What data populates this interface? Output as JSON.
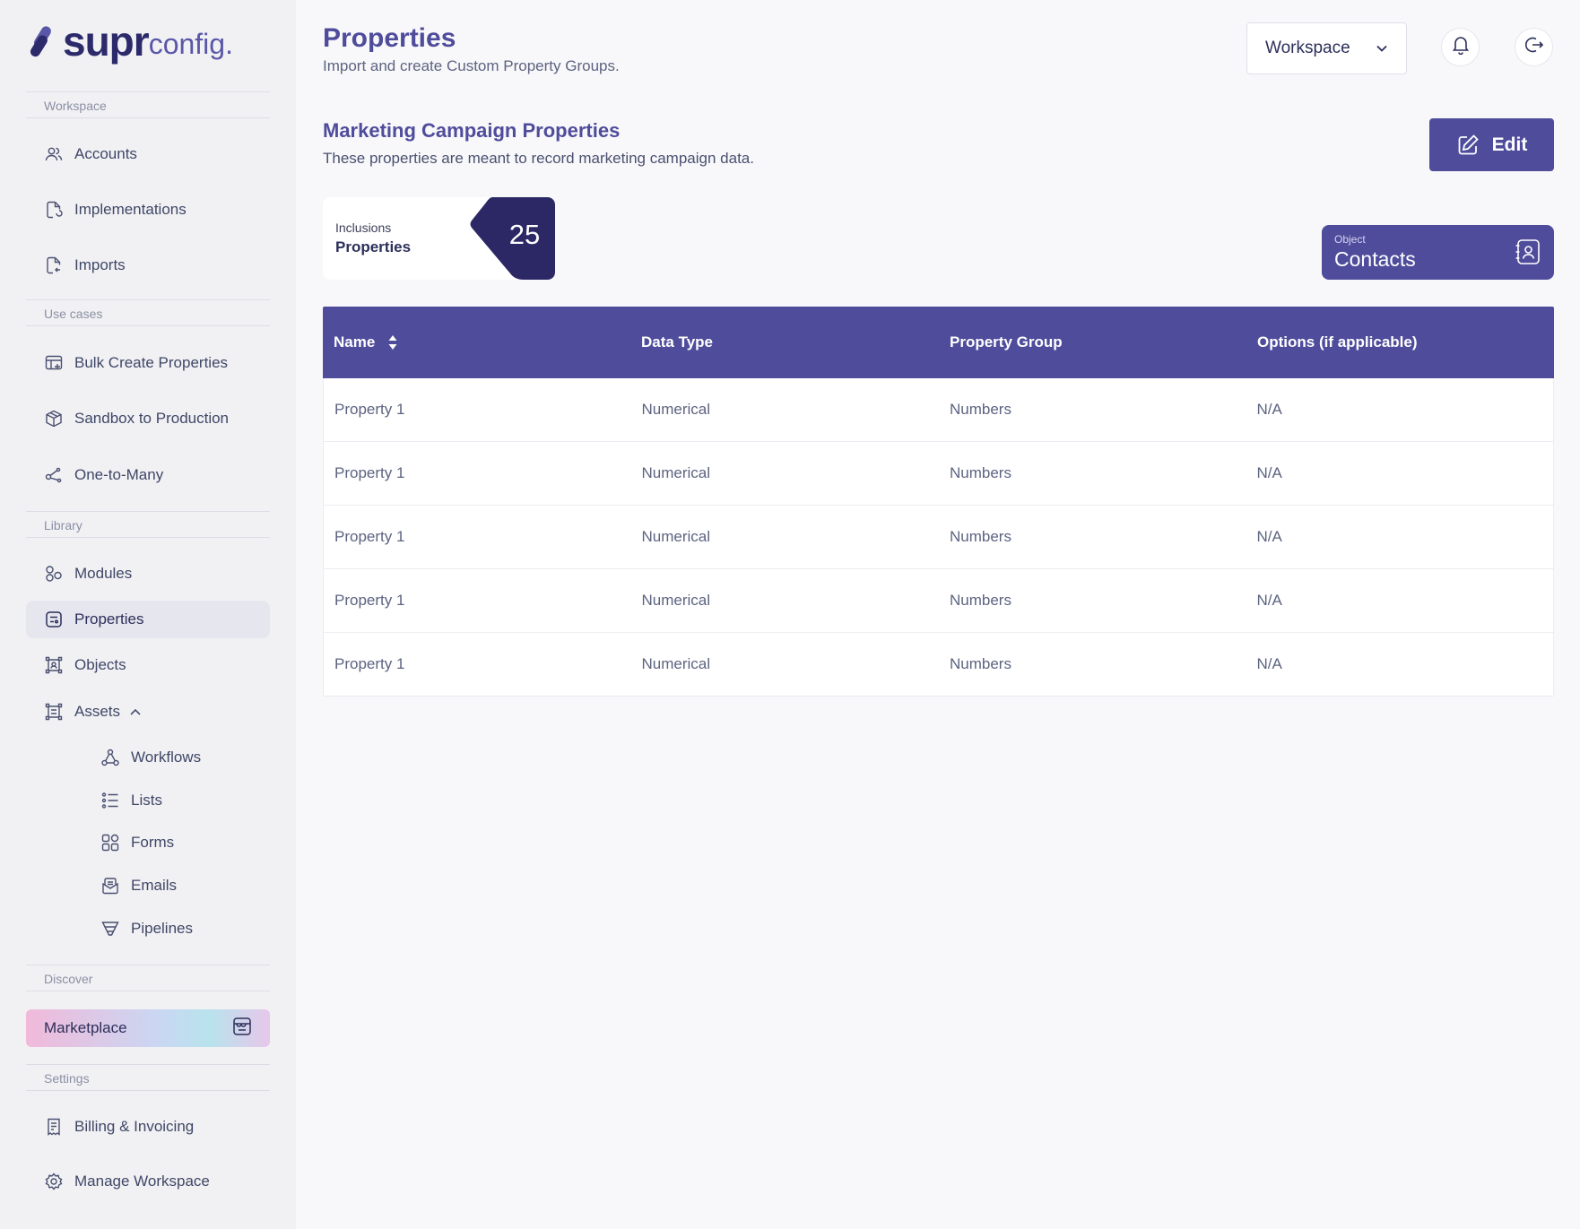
{
  "brand": {
    "name_bold": "supr",
    "name_light": "config."
  },
  "sidebar": {
    "sections": {
      "workspace": "Workspace",
      "use_cases": "Use cases",
      "library": "Library",
      "discover": "Discover",
      "settings": "Settings"
    },
    "workspace_items": [
      {
        "label": "Accounts",
        "icon": "users-icon"
      },
      {
        "label": "Implementations",
        "icon": "file-refresh-icon"
      },
      {
        "label": "Imports",
        "icon": "file-import-icon"
      }
    ],
    "use_case_items": [
      {
        "label": "Bulk Create Properties",
        "icon": "table-add-icon"
      },
      {
        "label": "Sandbox to Production",
        "icon": "box-icon"
      },
      {
        "label": "One-to-Many",
        "icon": "share-nodes-icon"
      }
    ],
    "library_items": [
      {
        "label": "Modules",
        "icon": "modules-icon"
      },
      {
        "label": "Properties",
        "icon": "properties-icon",
        "active": true
      },
      {
        "label": "Objects",
        "icon": "objects-icon"
      },
      {
        "label": "Assets",
        "icon": "assets-icon",
        "expanded": true
      }
    ],
    "asset_items": [
      {
        "label": "Workflows",
        "icon": "workflow-icon"
      },
      {
        "label": "Lists",
        "icon": "list-icon"
      },
      {
        "label": "Forms",
        "icon": "forms-icon"
      },
      {
        "label": "Emails",
        "icon": "email-icon"
      },
      {
        "label": "Pipelines",
        "icon": "funnel-icon"
      }
    ],
    "marketplace": {
      "label": "Marketplace",
      "icon": "store-icon"
    },
    "settings_items": [
      {
        "label": "Billing & Invoicing",
        "icon": "receipt-icon"
      },
      {
        "label": "Manage Workspace",
        "icon": "gear-icon"
      }
    ]
  },
  "header": {
    "title": "Properties",
    "subtitle": "Import and create Custom Property Groups.",
    "workspace_select": "Workspace"
  },
  "group": {
    "title": "Marketing Campaign Properties",
    "description": "These properties are meant to record marketing campaign data.",
    "edit_label": "Edit",
    "inclusions": {
      "label": "Inclusions",
      "type": "Properties",
      "count": "25"
    },
    "object": {
      "label": "Object",
      "value": "Contacts"
    }
  },
  "table": {
    "columns": [
      "Name",
      "Data Type",
      "Property Group",
      "Options (if applicable)"
    ],
    "rows": [
      [
        "Property 1",
        "Numerical",
        "Numbers",
        "N/A"
      ],
      [
        "Property 1",
        "Numerical",
        "Numbers",
        "N/A"
      ],
      [
        "Property 1",
        "Numerical",
        "Numbers",
        "N/A"
      ],
      [
        "Property 1",
        "Numerical",
        "Numbers",
        "N/A"
      ],
      [
        "Property 1",
        "Numerical",
        "Numbers",
        "N/A"
      ]
    ]
  },
  "colors": {
    "accent": "#4f4c9c",
    "dark": "#2c2a6b",
    "sidebar_bg": "#f1f1f4",
    "page_bg": "#f8f8fa"
  }
}
